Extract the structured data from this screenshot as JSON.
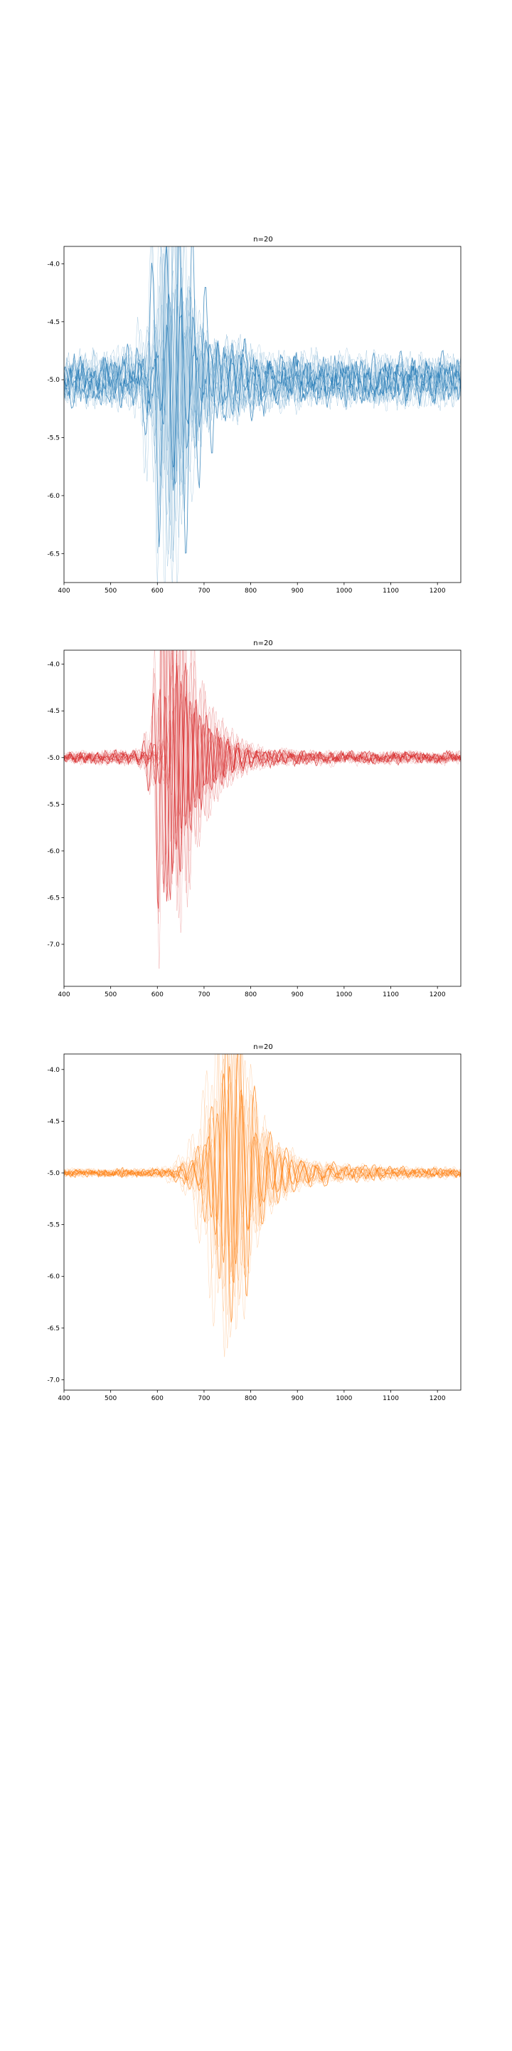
{
  "chart_data": [
    {
      "type": "line",
      "title": "n=20",
      "xlabel": "",
      "ylabel": "",
      "xlim": [
        400,
        1250
      ],
      "ylim": [
        -6.75,
        -3.85
      ],
      "xticks": [
        400,
        500,
        600,
        700,
        800,
        900,
        1000,
        1100,
        1200
      ],
      "yticks": [
        -4.0,
        -4.5,
        -5.0,
        -5.5,
        -6.0,
        -6.5
      ],
      "grid": false,
      "legend": "none",
      "color": "#1f77b4",
      "n_traces": 20,
      "baseline": -5.0,
      "noise_amplitude": 0.09,
      "envelope": {
        "x": [
          400,
          560,
          590,
          610,
          625,
          640,
          660,
          680,
          700,
          720,
          760,
          800,
          900,
          1000,
          1250
        ],
        "amplitude": [
          0.12,
          0.16,
          0.45,
          1.2,
          1.65,
          1.3,
          0.85,
          0.55,
          0.35,
          0.22,
          0.3,
          0.18,
          0.14,
          0.13,
          0.12
        ]
      },
      "peak_x": 635,
      "wave_period": 28
    },
    {
      "type": "line",
      "title": "n=20",
      "xlabel": "",
      "ylabel": "",
      "xlim": [
        400,
        1250
      ],
      "ylim": [
        -7.45,
        -3.85
      ],
      "xticks": [
        400,
        500,
        600,
        700,
        800,
        900,
        1000,
        1100,
        1200
      ],
      "yticks": [
        -4.0,
        -4.5,
        -5.0,
        -5.5,
        -6.0,
        -6.5,
        -7.0
      ],
      "grid": false,
      "legend": "none",
      "color": "#d62728",
      "n_traces": 20,
      "baseline": -5.0,
      "noise_amplitude": 0.015,
      "envelope": {
        "x": [
          400,
          580,
          610,
          630,
          645,
          665,
          690,
          720,
          760,
          800,
          900,
          1000,
          1250
        ],
        "amplitude": [
          0.02,
          0.05,
          0.4,
          2.2,
          1.4,
          0.9,
          0.6,
          0.35,
          0.2,
          0.08,
          0.04,
          0.03,
          0.02
        ]
      },
      "peak_x": 632,
      "wave_period": 20
    },
    {
      "type": "line",
      "title": "n=20",
      "xlabel": "",
      "ylabel": "",
      "xlim": [
        400,
        1250
      ],
      "ylim": [
        -7.1,
        -3.85
      ],
      "xticks": [
        400,
        500,
        600,
        700,
        800,
        900,
        1000,
        1100,
        1200
      ],
      "yticks": [
        -4.0,
        -4.5,
        -5.0,
        -5.5,
        -6.0,
        -6.5,
        -7.0
      ],
      "grid": false,
      "legend": "none",
      "color": "#ff7f0e",
      "n_traces": 20,
      "baseline": -5.0,
      "noise_amplitude": 0.01,
      "envelope": {
        "x": [
          400,
          620,
          680,
          720,
          745,
          770,
          800,
          840,
          900,
          1000,
          1100,
          1250
        ],
        "amplitude": [
          0.01,
          0.02,
          0.2,
          0.9,
          1.7,
          1.3,
          0.6,
          0.3,
          0.12,
          0.06,
          0.04,
          0.02
        ]
      },
      "peak_x": 748,
      "wave_period": 30
    }
  ]
}
